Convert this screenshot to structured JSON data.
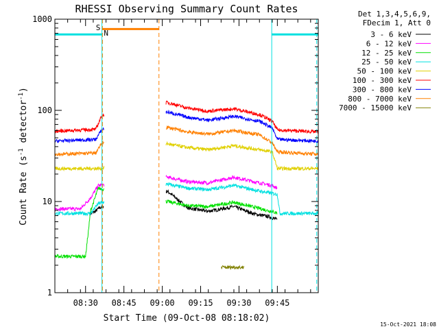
{
  "chart_data": {
    "type": "line",
    "title": "RHESSI Observing Summary Count Rates",
    "xlabel": "Start Time (09-Oct-08 08:18:02)",
    "ylabel_main": "Count Rate (s",
    "ylabel_sup1": "-1",
    "ylabel_mid": " detector",
    "ylabel_sup2": "-1",
    "ylabel_end": ")",
    "xlim_minutes": [
      0,
      103
    ],
    "ylim": [
      1,
      1000
    ],
    "yscale": "log",
    "x_ticks": [
      {
        "label": "08:30",
        "min": 12
      },
      {
        "label": "08:45",
        "min": 27
      },
      {
        "label": "09:00",
        "min": 42
      },
      {
        "label": "09:15",
        "min": 57
      },
      {
        "label": "09:30",
        "min": 72
      },
      {
        "label": "09:45",
        "min": 87
      }
    ],
    "y_ticks": [
      {
        "label": "1",
        "value": 1
      },
      {
        "label": "10",
        "value": 10
      },
      {
        "label": "100",
        "value": 100
      },
      {
        "label": "1000",
        "value": 1000
      }
    ],
    "legend_header": [
      "Det 1,3,4,5,6,9,",
      "FDecim 1, Att 0"
    ],
    "legend_position": "outside-right",
    "footer_date": "15-Oct-2021 18:08",
    "markers": [
      {
        "label": "S",
        "color": "#ff8000"
      },
      {
        "label": "N",
        "color": "#00e0e0"
      }
    ],
    "segments": [
      {
        "name": "saa",
        "color": "#ff8000",
        "start_min": 18.6,
        "end_min": 40.7,
        "value": 780
      },
      {
        "name": "night",
        "color": "#00e0e0",
        "start_min": 0,
        "end_min": 18.4,
        "value": 680
      },
      {
        "name": "night",
        "color": "#00e0e0",
        "start_min": 84.8,
        "end_min": 103,
        "value": 680
      }
    ],
    "gaps": [
      {
        "from_min": 19.2,
        "to_min": 43.4
      }
    ],
    "series": [
      {
        "name": "3 - 6 keV",
        "color": "#000000",
        "points": [
          [
            13.7,
            7.3
          ],
          [
            15.8,
            7.8
          ],
          [
            17.6,
            8.6
          ],
          [
            44,
            13
          ],
          [
            52,
            8.5
          ],
          [
            60,
            7.8
          ],
          [
            70,
            8.8
          ],
          [
            78,
            7.3
          ],
          [
            84,
            6.8
          ],
          [
            87,
            6.3
          ]
        ]
      },
      {
        "name": "6 - 12 keV",
        "color": "#ff00ff",
        "points": [
          [
            0,
            8.3
          ],
          [
            10,
            8.3
          ],
          [
            14,
            11
          ],
          [
            17,
            15
          ],
          [
            44,
            18.5
          ],
          [
            52,
            16.5
          ],
          [
            60,
            16
          ],
          [
            70,
            18.5
          ],
          [
            80,
            16
          ],
          [
            85,
            15
          ],
          [
            87,
            14
          ]
        ]
      },
      {
        "name": "12 - 25 keV",
        "color": "#00e000",
        "points": [
          [
            0,
            2.5
          ],
          [
            12,
            2.5
          ],
          [
            14,
            8
          ],
          [
            17,
            14
          ],
          [
            44,
            10
          ],
          [
            52,
            9
          ],
          [
            60,
            8.8
          ],
          [
            70,
            9.8
          ],
          [
            80,
            8.4
          ],
          [
            87,
            7.5
          ]
        ]
      },
      {
        "name": "25 - 50 keV",
        "color": "#00e0e0",
        "points": [
          [
            0,
            7.4
          ],
          [
            14,
            7.4
          ],
          [
            17,
            9.5
          ],
          [
            44,
            15.5
          ],
          [
            52,
            14
          ],
          [
            60,
            13.5
          ],
          [
            70,
            15
          ],
          [
            80,
            13
          ],
          [
            87,
            12
          ],
          [
            88,
            7.4
          ],
          [
            103,
            7.4
          ]
        ]
      },
      {
        "name": "50 - 100 keV",
        "color": "#e0d000",
        "points": [
          [
            0,
            23
          ],
          [
            18.4,
            23
          ],
          [
            44,
            43
          ],
          [
            52,
            39
          ],
          [
            60,
            37
          ],
          [
            70,
            41
          ],
          [
            80,
            37
          ],
          [
            85,
            35
          ],
          [
            87,
            23
          ],
          [
            103,
            23
          ]
        ]
      },
      {
        "name": "100 - 300 keV",
        "color": "#ff0000",
        "points": [
          [
            0,
            59
          ],
          [
            16,
            62
          ],
          [
            18.4,
            88
          ],
          [
            44,
            122
          ],
          [
            52,
            106
          ],
          [
            60,
            98
          ],
          [
            70,
            104
          ],
          [
            80,
            90
          ],
          [
            85,
            76
          ],
          [
            87,
            61
          ],
          [
            103,
            58
          ]
        ]
      },
      {
        "name": "300 - 800 keV",
        "color": "#0000ff",
        "points": [
          [
            0,
            46
          ],
          [
            16,
            48
          ],
          [
            18.4,
            62
          ],
          [
            44,
            96
          ],
          [
            52,
            84
          ],
          [
            60,
            78
          ],
          [
            70,
            86
          ],
          [
            80,
            76
          ],
          [
            85,
            64
          ],
          [
            87,
            48
          ],
          [
            103,
            46
          ]
        ]
      },
      {
        "name": "800 - 7000 keV",
        "color": "#ff8000",
        "points": [
          [
            0,
            33
          ],
          [
            16,
            34
          ],
          [
            18.4,
            44
          ],
          [
            44,
            65
          ],
          [
            52,
            58
          ],
          [
            60,
            55
          ],
          [
            70,
            60
          ],
          [
            80,
            54
          ],
          [
            85,
            44
          ],
          [
            87,
            35
          ],
          [
            103,
            33
          ]
        ]
      },
      {
        "name": "7000 - 15000 keV",
        "color": "#808000",
        "points": [
          [
            65,
            1.9
          ],
          [
            74,
            1.9
          ]
        ]
      }
    ]
  }
}
